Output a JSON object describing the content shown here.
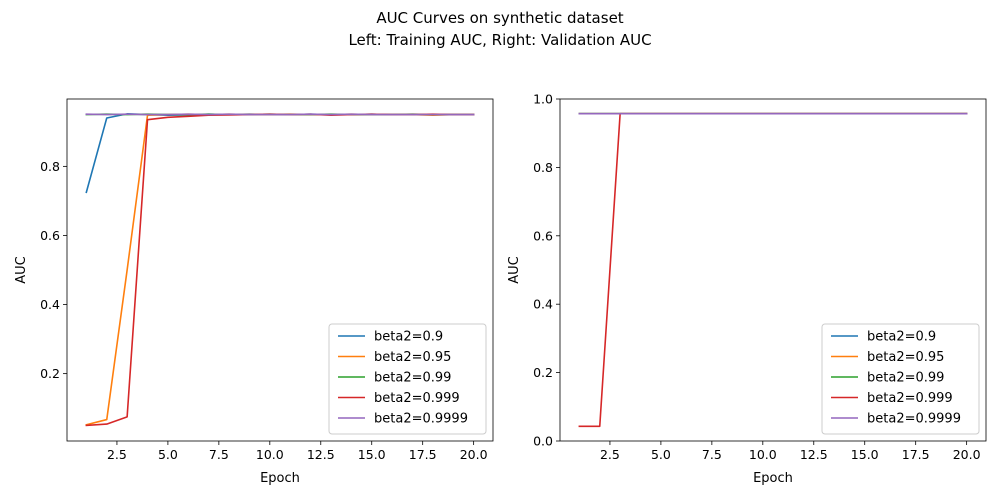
{
  "figure": {
    "title_line1": "AUC Curves on synthetic dataset",
    "title_line2": "Left: Training AUC, Right: Validation AUC"
  },
  "chart_data": [
    {
      "type": "line",
      "title": "",
      "xlabel": "Epoch",
      "ylabel": "AUC",
      "xlim": [
        0.05,
        20.95
      ],
      "ylim": [
        0.005,
        0.995
      ],
      "xticks": [
        2.5,
        5.0,
        7.5,
        10.0,
        12.5,
        15.0,
        17.5,
        20.0
      ],
      "xtick_labels": [
        "2.5",
        "5.0",
        "7.5",
        "10.0",
        "12.5",
        "15.0",
        "17.5",
        "20.0"
      ],
      "yticks": [
        0.2,
        0.4,
        0.6,
        0.8
      ],
      "ytick_labels": [
        "0.2",
        "0.4",
        "0.6",
        "0.8"
      ],
      "grid": false,
      "legend_position": "lower-right",
      "x": [
        1,
        2,
        3,
        4,
        5,
        6,
        7,
        8,
        9,
        10,
        11,
        12,
        13,
        14,
        15,
        16,
        17,
        18,
        19,
        20
      ],
      "series": [
        {
          "name": "beta2=0.9",
          "color": "#1f77b4",
          "values": [
            0.725,
            0.94,
            0.952,
            0.95,
            0.948,
            0.949,
            0.951,
            0.95,
            0.951,
            0.95,
            0.95,
            0.951,
            0.95,
            0.95,
            0.951,
            0.95,
            0.95,
            0.95,
            0.95,
            0.95
          ]
        },
        {
          "name": "beta2=0.95",
          "color": "#ff7f0e",
          "values": [
            0.052,
            0.067,
            0.5,
            0.948,
            0.95,
            0.951,
            0.95,
            0.951,
            0.95,
            0.95,
            0.951,
            0.95,
            0.95,
            0.951,
            0.95,
            0.95,
            0.95,
            0.948,
            0.95,
            0.95
          ]
        },
        {
          "name": "beta2=0.99",
          "color": "#2ca02c",
          "values": [
            0.95,
            0.951,
            0.95,
            0.951,
            0.95,
            0.95,
            0.951,
            0.95,
            0.95,
            0.951,
            0.95,
            0.95,
            0.951,
            0.95,
            0.95,
            0.95,
            0.951,
            0.95,
            0.95,
            0.95
          ]
        },
        {
          "name": "beta2=0.999",
          "color": "#d62728",
          "values": [
            0.05,
            0.054,
            0.075,
            0.935,
            0.942,
            0.945,
            0.948,
            0.949,
            0.95,
            0.951,
            0.95,
            0.951,
            0.948,
            0.95,
            0.951,
            0.95,
            0.95,
            0.951,
            0.95,
            0.95
          ]
        },
        {
          "name": "beta2=0.9999",
          "color": "#9467bd",
          "values": [
            0.951,
            0.95,
            0.951,
            0.95,
            0.95,
            0.951,
            0.95,
            0.951,
            0.95,
            0.95,
            0.95,
            0.951,
            0.95,
            0.951,
            0.95,
            0.95,
            0.95,
            0.95,
            0.95,
            0.95
          ]
        }
      ]
    },
    {
      "type": "line",
      "title": "",
      "xlabel": "Epoch",
      "ylabel": "AUC",
      "xlim": [
        0.05,
        20.95
      ],
      "ylim": [
        0.0,
        1.0
      ],
      "xticks": [
        2.5,
        5.0,
        7.5,
        10.0,
        12.5,
        15.0,
        17.5,
        20.0
      ],
      "xtick_labels": [
        "2.5",
        "5.0",
        "7.5",
        "10.0",
        "12.5",
        "15.0",
        "17.5",
        "20.0"
      ],
      "yticks": [
        0.0,
        0.2,
        0.4,
        0.6,
        0.8,
        1.0
      ],
      "ytick_labels": [
        "0.0",
        "0.2",
        "0.4",
        "0.6",
        "0.8",
        "1.0"
      ],
      "grid": false,
      "legend_position": "lower-right",
      "x": [
        1,
        2,
        3,
        4,
        5,
        6,
        7,
        8,
        9,
        10,
        11,
        12,
        13,
        14,
        15,
        16,
        17,
        18,
        19,
        20
      ],
      "series": [
        {
          "name": "beta2=0.9",
          "color": "#1f77b4",
          "values": [
            0.957,
            0.957,
            0.957,
            0.957,
            0.957,
            0.957,
            0.957,
            0.957,
            0.957,
            0.957,
            0.957,
            0.957,
            0.957,
            0.957,
            0.957,
            0.957,
            0.957,
            0.957,
            0.957,
            0.957
          ]
        },
        {
          "name": "beta2=0.95",
          "color": "#ff7f0e",
          "values": [
            0.957,
            0.957,
            0.957,
            0.957,
            0.957,
            0.957,
            0.957,
            0.957,
            0.957,
            0.957,
            0.957,
            0.957,
            0.957,
            0.957,
            0.957,
            0.957,
            0.957,
            0.957,
            0.957,
            0.957
          ]
        },
        {
          "name": "beta2=0.99",
          "color": "#2ca02c",
          "values": [
            0.957,
            0.957,
            0.957,
            0.957,
            0.957,
            0.957,
            0.957,
            0.957,
            0.957,
            0.957,
            0.957,
            0.957,
            0.957,
            0.957,
            0.957,
            0.957,
            0.957,
            0.957,
            0.957,
            0.957
          ]
        },
        {
          "name": "beta2=0.999",
          "color": "#d62728",
          "values": [
            0.043,
            0.043,
            0.957,
            0.957,
            0.957,
            0.957,
            0.957,
            0.957,
            0.957,
            0.957,
            0.957,
            0.957,
            0.957,
            0.957,
            0.957,
            0.957,
            0.957,
            0.957,
            0.957,
            0.957
          ]
        },
        {
          "name": "beta2=0.9999",
          "color": "#9467bd",
          "values": [
            0.957,
            0.957,
            0.957,
            0.957,
            0.957,
            0.957,
            0.957,
            0.957,
            0.957,
            0.957,
            0.957,
            0.957,
            0.957,
            0.957,
            0.957,
            0.957,
            0.957,
            0.957,
            0.957,
            0.957
          ]
        }
      ]
    }
  ]
}
